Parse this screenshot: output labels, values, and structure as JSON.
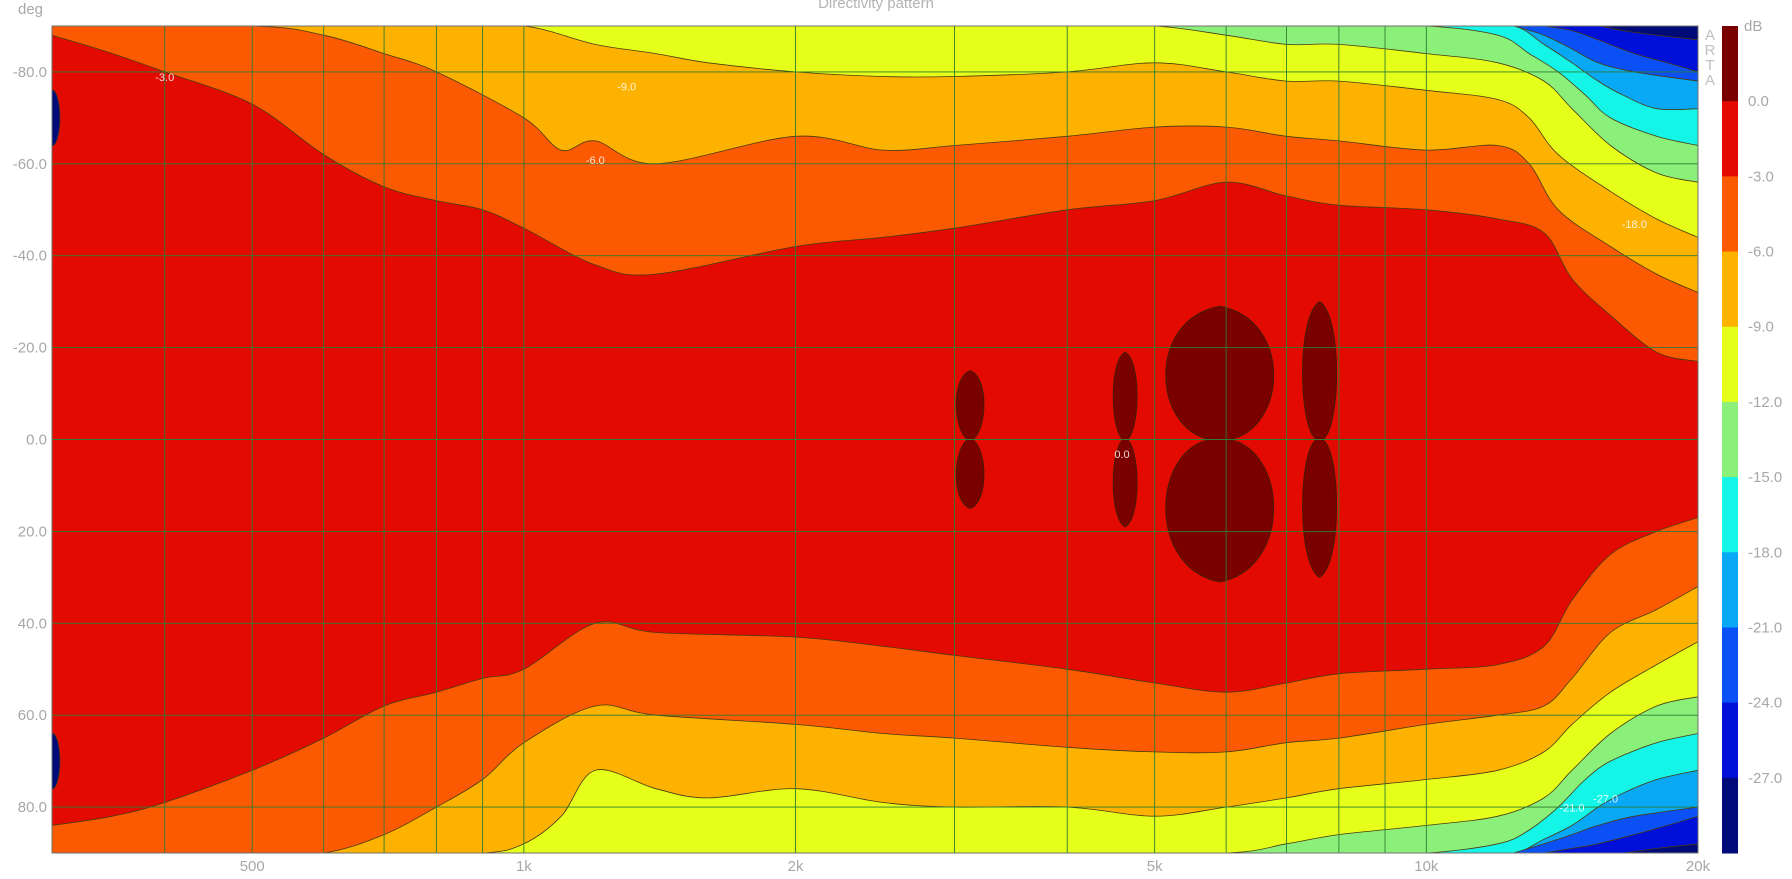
{
  "chart_data": {
    "type": "heatmap",
    "title": "Directivity pattern",
    "ylabel": "deg",
    "colorbar_label": "dB",
    "watermark": [
      "A",
      "R",
      "T",
      "A"
    ],
    "x_scale": "log",
    "xlim": [
      300,
      20000
    ],
    "ylim": [
      -90,
      90
    ],
    "x_ticks": [
      {
        "value": 500,
        "label": "500"
      },
      {
        "value": 1000,
        "label": "1k"
      },
      {
        "value": 2000,
        "label": "2k"
      },
      {
        "value": 5000,
        "label": "5k"
      },
      {
        "value": 10000,
        "label": "10k"
      },
      {
        "value": 20000,
        "label": "20k"
      }
    ],
    "y_ticks": [
      {
        "value": -80,
        "label": "-80.0"
      },
      {
        "value": -60,
        "label": "-60.0"
      },
      {
        "value": -40,
        "label": "-40.0"
      },
      {
        "value": -20,
        "label": "-20.0"
      },
      {
        "value": 0,
        "label": "0.0"
      },
      {
        "value": 20,
        "label": "20.0"
      },
      {
        "value": 40,
        "label": "40.0"
      },
      {
        "value": 60,
        "label": "60.0"
      },
      {
        "value": 80,
        "label": "80.0"
      }
    ],
    "grid": true,
    "colorbar": [
      {
        "from": 3,
        "to": 0,
        "color": "#7a0000"
      },
      {
        "from": 0,
        "to": -3,
        "color": "#e30a02"
      },
      {
        "from": -3,
        "to": -6,
        "color": "#fb5a02"
      },
      {
        "from": -6,
        "to": -9,
        "color": "#fdb200"
      },
      {
        "from": -9,
        "to": -12,
        "color": "#e6ff1a"
      },
      {
        "from": -12,
        "to": -15,
        "color": "#8af07a"
      },
      {
        "from": -15,
        "to": -18,
        "color": "#14f5e8"
      },
      {
        "from": -18,
        "to": -21,
        "color": "#08a8f4"
      },
      {
        "from": -21,
        "to": -24,
        "color": "#0a50f5"
      },
      {
        "from": -24,
        "to": -27,
        "color": "#0010d8"
      },
      {
        "from": -27,
        "to": -30,
        "color": "#000a78"
      }
    ],
    "colorbar_ticks": [
      {
        "value": 0,
        "label": "0.0"
      },
      {
        "value": -3,
        "label": "-3.0"
      },
      {
        "value": -6,
        "label": "-6.0"
      },
      {
        "value": -9,
        "label": "-9.0"
      },
      {
        "value": -12,
        "label": "-12.0"
      },
      {
        "value": -15,
        "label": "-15.0"
      },
      {
        "value": -18,
        "label": "-18.0"
      },
      {
        "value": -21,
        "label": "-21.0"
      },
      {
        "value": -24,
        "label": "-24.0"
      },
      {
        "value": -27,
        "label": "-27.0"
      }
    ],
    "contour_labels": [
      {
        "freq": 400,
        "angle": -78,
        "text": "-3.0"
      },
      {
        "freq": 1300,
        "angle": -76,
        "text": "-9.0"
      },
      {
        "freq": 1200,
        "angle": -60,
        "text": "-6.0"
      },
      {
        "freq": 4600,
        "angle": 4,
        "text": "0.0"
      },
      {
        "freq": 17000,
        "angle": -46,
        "text": "-18.0"
      },
      {
        "freq": 14500,
        "angle": 81,
        "text": "-21.0"
      },
      {
        "freq": 15800,
        "angle": 79,
        "text": "-27.0"
      }
    ],
    "directivity_bands": [
      {
        "level": -3,
        "upper": [
          [
            300,
            -88
          ],
          [
            350,
            -84
          ],
          [
            400,
            -80
          ],
          [
            500,
            -73
          ],
          [
            600,
            -62
          ],
          [
            700,
            -55
          ],
          [
            800,
            -52
          ],
          [
            900,
            -50
          ],
          [
            1000,
            -46
          ],
          [
            1200,
            -38
          ],
          [
            1400,
            -36
          ],
          [
            2000,
            -42
          ],
          [
            2500,
            -44
          ],
          [
            3000,
            -46
          ],
          [
            4000,
            -50
          ],
          [
            5000,
            -52
          ],
          [
            6000,
            -56
          ],
          [
            7000,
            -53
          ],
          [
            8000,
            -51
          ],
          [
            10000,
            -50
          ],
          [
            12000,
            -48
          ],
          [
            13500,
            -45
          ],
          [
            14500,
            -35
          ],
          [
            16000,
            -27
          ],
          [
            18000,
            -19
          ],
          [
            20000,
            -17
          ]
        ],
        "lower": [
          [
            300,
            84
          ],
          [
            350,
            82
          ],
          [
            400,
            79
          ],
          [
            500,
            72
          ],
          [
            600,
            65
          ],
          [
            700,
            58
          ],
          [
            800,
            55
          ],
          [
            900,
            52
          ],
          [
            1000,
            50
          ],
          [
            1200,
            40
          ],
          [
            1400,
            42
          ],
          [
            2000,
            43
          ],
          [
            2500,
            45
          ],
          [
            3000,
            47
          ],
          [
            4000,
            50
          ],
          [
            5000,
            53
          ],
          [
            6000,
            55
          ],
          [
            7000,
            53
          ],
          [
            8000,
            51
          ],
          [
            10000,
            50
          ],
          [
            12000,
            49
          ],
          [
            13500,
            45
          ],
          [
            14500,
            35
          ],
          [
            16000,
            25
          ],
          [
            18000,
            20
          ],
          [
            20000,
            17
          ]
        ]
      },
      {
        "level": -6,
        "upper": [
          [
            300,
            -90
          ],
          [
            500,
            -90
          ],
          [
            600,
            -88
          ],
          [
            700,
            -84
          ],
          [
            800,
            -80
          ],
          [
            1000,
            -70
          ],
          [
            1100,
            -63
          ],
          [
            1200,
            -65
          ],
          [
            1400,
            -60
          ],
          [
            2000,
            -66
          ],
          [
            2500,
            -63
          ],
          [
            3000,
            -64
          ],
          [
            4000,
            -66
          ],
          [
            5000,
            -68
          ],
          [
            6000,
            -68
          ],
          [
            7000,
            -66
          ],
          [
            8000,
            -65
          ],
          [
            10000,
            -63
          ],
          [
            12000,
            -64
          ],
          [
            13000,
            -60
          ],
          [
            14000,
            -50
          ],
          [
            16000,
            -42
          ],
          [
            18000,
            -36
          ],
          [
            20000,
            -32
          ]
        ],
        "lower": [
          [
            300,
            90
          ],
          [
            500,
            90
          ],
          [
            600,
            90
          ],
          [
            700,
            86
          ],
          [
            800,
            80
          ],
          [
            900,
            74
          ],
          [
            1000,
            66
          ],
          [
            1200,
            58
          ],
          [
            1400,
            60
          ],
          [
            2000,
            62
          ],
          [
            2500,
            64
          ],
          [
            3000,
            65
          ],
          [
            4000,
            67
          ],
          [
            5000,
            68
          ],
          [
            6000,
            68
          ],
          [
            7000,
            66
          ],
          [
            8000,
            65
          ],
          [
            10000,
            62
          ],
          [
            12000,
            60
          ],
          [
            13500,
            58
          ],
          [
            14500,
            52
          ],
          [
            16000,
            42
          ],
          [
            18000,
            37
          ],
          [
            20000,
            32
          ]
        ]
      },
      {
        "level": -9,
        "upper": [
          [
            800,
            -90
          ],
          [
            1000,
            -90
          ],
          [
            1200,
            -86
          ],
          [
            1400,
            -84
          ],
          [
            1600,
            -82
          ],
          [
            2000,
            -80
          ],
          [
            2500,
            -79
          ],
          [
            3000,
            -79
          ],
          [
            4000,
            -80
          ],
          [
            5000,
            -82
          ],
          [
            6000,
            -80
          ],
          [
            7000,
            -78
          ],
          [
            8000,
            -78
          ],
          [
            10000,
            -76
          ],
          [
            12000,
            -74
          ],
          [
            13000,
            -70
          ],
          [
            14000,
            -62
          ],
          [
            16000,
            -54
          ],
          [
            18000,
            -48
          ],
          [
            20000,
            -44
          ]
        ],
        "lower": [
          [
            700,
            90
          ],
          [
            900,
            90
          ],
          [
            1000,
            88
          ],
          [
            1100,
            82
          ],
          [
            1200,
            72
          ],
          [
            1400,
            76
          ],
          [
            1600,
            78
          ],
          [
            2000,
            76
          ],
          [
            2500,
            79
          ],
          [
            3000,
            80
          ],
          [
            4000,
            80
          ],
          [
            5000,
            82
          ],
          [
            6000,
            80
          ],
          [
            7000,
            78
          ],
          [
            8000,
            76
          ],
          [
            10000,
            74
          ],
          [
            12000,
            72
          ],
          [
            13500,
            68
          ],
          [
            14500,
            62
          ],
          [
            16000,
            55
          ],
          [
            18000,
            49
          ],
          [
            20000,
            44
          ]
        ]
      },
      {
        "level": -12,
        "upper": [
          [
            2000,
            -90
          ],
          [
            3000,
            -90
          ],
          [
            4000,
            -90
          ],
          [
            5000,
            -90
          ],
          [
            6000,
            -88
          ],
          [
            7000,
            -86
          ],
          [
            8000,
            -86
          ],
          [
            10000,
            -84
          ],
          [
            12000,
            -82
          ],
          [
            13500,
            -78
          ],
          [
            14500,
            -72
          ],
          [
            16000,
            -64
          ],
          [
            18000,
            -58
          ],
          [
            20000,
            -56
          ]
        ],
        "lower": [
          [
            1200,
            90
          ],
          [
            1500,
            90
          ],
          [
            2000,
            90
          ],
          [
            3000,
            90
          ],
          [
            4000,
            90
          ],
          [
            6000,
            90
          ],
          [
            7000,
            88
          ],
          [
            8000,
            86
          ],
          [
            10000,
            84
          ],
          [
            12000,
            82
          ],
          [
            13500,
            78
          ],
          [
            14500,
            72
          ],
          [
            16000,
            64
          ],
          [
            18000,
            58
          ],
          [
            20000,
            56
          ]
        ]
      },
      {
        "level": -15,
        "upper": [
          [
            8000,
            -90
          ],
          [
            10000,
            -90
          ],
          [
            12000,
            -88
          ],
          [
            13000,
            -84
          ],
          [
            14000,
            -80
          ],
          [
            15000,
            -75
          ],
          [
            16000,
            -70
          ],
          [
            18000,
            -66
          ],
          [
            20000,
            -64
          ]
        ],
        "lower": [
          [
            8000,
            90
          ],
          [
            10000,
            90
          ],
          [
            12000,
            88
          ],
          [
            13000,
            85
          ],
          [
            14000,
            80
          ],
          [
            15000,
            74
          ],
          [
            16000,
            70
          ],
          [
            18000,
            66
          ],
          [
            20000,
            64
          ]
        ]
      },
      {
        "level": -18,
        "upper": [
          [
            11000,
            -90
          ],
          [
            12500,
            -90
          ],
          [
            13500,
            -86
          ],
          [
            14500,
            -82
          ],
          [
            15500,
            -78
          ],
          [
            16500,
            -75
          ],
          [
            18000,
            -72
          ],
          [
            20000,
            -72
          ]
        ],
        "lower": [
          [
            11000,
            90
          ],
          [
            12500,
            90
          ],
          [
            13500,
            87
          ],
          [
            14500,
            84
          ],
          [
            15500,
            80
          ],
          [
            16500,
            77
          ],
          [
            18000,
            74
          ],
          [
            20000,
            72
          ]
        ]
      },
      {
        "level": -21,
        "upper": [
          [
            12500,
            -90
          ],
          [
            13500,
            -88
          ],
          [
            14500,
            -85
          ],
          [
            15500,
            -82
          ],
          [
            17000,
            -80
          ],
          [
            20000,
            -78
          ]
        ],
        "lower": [
          [
            12500,
            90
          ],
          [
            13500,
            88
          ],
          [
            14500,
            86
          ],
          [
            15500,
            84
          ],
          [
            17000,
            82
          ],
          [
            20000,
            80
          ]
        ]
      },
      {
        "level": -24,
        "upper": [
          [
            13500,
            -90
          ],
          [
            14500,
            -89
          ],
          [
            15500,
            -87
          ],
          [
            17000,
            -84
          ],
          [
            18500,
            -82
          ],
          [
            20000,
            -80
          ]
        ],
        "lower": [
          [
            13500,
            90
          ],
          [
            14500,
            89
          ],
          [
            15500,
            88
          ],
          [
            17000,
            86
          ],
          [
            18500,
            84
          ],
          [
            20000,
            82
          ]
        ]
      },
      {
        "level": -27,
        "upper": [
          [
            14500,
            -90
          ],
          [
            15500,
            -90
          ],
          [
            16500,
            -89
          ],
          [
            18000,
            -88
          ],
          [
            20000,
            -87
          ]
        ],
        "lower": [
          [
            14500,
            90
          ],
          [
            15500,
            90
          ],
          [
            16500,
            90
          ],
          [
            18000,
            89
          ],
          [
            20000,
            88
          ]
        ]
      }
    ],
    "peak_regions": [
      {
        "freq_range": [
          3000,
          3250
        ],
        "angle_range": [
          -15,
          15
        ]
      },
      {
        "freq_range": [
          4480,
          4800
        ],
        "angle_range": [
          -19,
          19
        ]
      },
      {
        "freq_range": [
          5050,
          6900
        ],
        "angle_range": [
          -29,
          31
        ]
      },
      {
        "freq_range": [
          7250,
          8000
        ],
        "angle_range": [
          -30,
          30
        ]
      }
    ],
    "rear_minimum_regions": [
      {
        "freq": 300,
        "angle": -70
      },
      {
        "freq": 300,
        "angle": 70
      }
    ]
  }
}
